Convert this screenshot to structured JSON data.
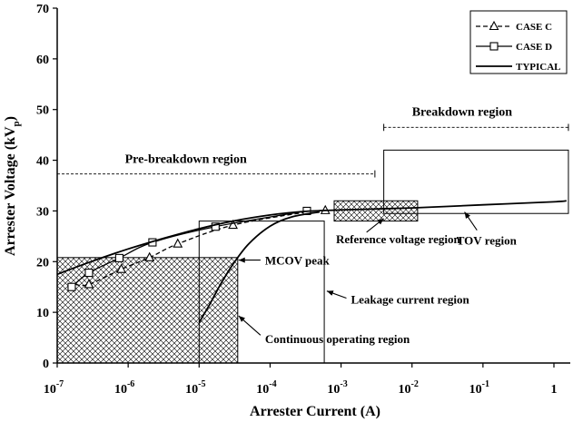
{
  "chart_data": {
    "type": "line",
    "x_scale": "log",
    "xlabel": "Arrester Current (A)",
    "ylabel": "Arrester Voltage (kV",
    "ylabel_sub": "p",
    "ylabel_close": ")",
    "xlim": [
      1e-07,
      1
    ],
    "ylim": [
      0,
      70
    ],
    "x_ticks": [
      {
        "value": 1e-07,
        "base": "10",
        "exp": "-7"
      },
      {
        "value": 1e-06,
        "base": "10",
        "exp": "-6"
      },
      {
        "value": 1e-05,
        "base": "10",
        "exp": "-5"
      },
      {
        "value": 0.0001,
        "base": "10",
        "exp": "-4"
      },
      {
        "value": 0.001,
        "base": "10",
        "exp": "-3"
      },
      {
        "value": 0.01,
        "base": "10",
        "exp": "-2"
      },
      {
        "value": 0.1,
        "base": "10",
        "exp": "-1"
      },
      {
        "value": 1,
        "base": "1",
        "exp": ""
      }
    ],
    "y_ticks": [
      0,
      10,
      20,
      30,
      40,
      50,
      60,
      70
    ],
    "grid": false,
    "legend_position": "top-right",
    "series": [
      {
        "name": "CASE C",
        "marker": "triangle",
        "dash": "dashed",
        "points": [
          [
            1.8e-07,
            15.5
          ],
          [
            2.8e-07,
            15.5
          ],
          [
            8e-07,
            18.5
          ],
          [
            2e-06,
            20.8
          ],
          [
            5e-06,
            23.5
          ],
          [
            3e-05,
            27.2
          ],
          [
            0.0003,
            29.7
          ],
          [
            0.0006,
            30.1
          ]
        ],
        "markers_at": [
          [
            2.8e-07,
            15.5
          ],
          [
            8e-07,
            18.5
          ],
          [
            2e-06,
            20.8
          ],
          [
            5e-06,
            23.5
          ],
          [
            3e-05,
            27.2
          ],
          [
            0.0006,
            30.1
          ]
        ]
      },
      {
        "name": "CASE D",
        "marker": "square",
        "dash": "solid",
        "points": [
          [
            1.6e-07,
            15
          ],
          [
            2.8e-07,
            17.8
          ],
          [
            7.5e-07,
            20.7
          ],
          [
            2.2e-06,
            23.8
          ],
          [
            1.7e-05,
            26.9
          ],
          [
            0.00033,
            30
          ]
        ],
        "markers_at": [
          [
            1.6e-07,
            15
          ],
          [
            2.8e-07,
            17.8
          ],
          [
            7.5e-07,
            20.7
          ],
          [
            2.2e-06,
            23.8
          ],
          [
            1.7e-05,
            26.9
          ],
          [
            0.00033,
            30
          ]
        ]
      },
      {
        "name": "TYPICAL",
        "marker": "none",
        "dash": "solid",
        "points": [
          [
            1e-07,
            17.5
          ],
          [
            3e-07,
            20
          ],
          [
            1e-06,
            22.5
          ],
          [
            3e-06,
            24.5
          ],
          [
            1e-05,
            26.5
          ],
          [
            3e-05,
            28
          ],
          [
            0.0001,
            29.2
          ],
          [
            0.0003,
            29.9
          ],
          [
            0.001,
            30.2
          ],
          [
            0.01,
            30.6
          ],
          [
            0.1,
            31.2
          ],
          [
            1,
            31.8
          ],
          [
            1.5,
            32
          ]
        ]
      },
      {
        "name": "",
        "marker": "none",
        "dash": "solid",
        "points": [
          [
            1e-05,
            8
          ],
          [
            1.4e-05,
            11.5
          ],
          [
            2e-05,
            15.5
          ],
          [
            3e-05,
            19.5
          ],
          [
            5e-05,
            23.5
          ],
          [
            0.0001,
            27
          ],
          [
            0.0002,
            28.8
          ],
          [
            0.0005,
            29.8
          ]
        ]
      }
    ],
    "regions": [
      {
        "name": "MCOV hatched box",
        "x": [
          1e-07,
          3.5e-05
        ],
        "y": [
          0,
          20.8
        ],
        "hatched": true
      },
      {
        "name": "Continuous operating box",
        "x": [
          1e-05,
          0.00058
        ],
        "y": [
          0,
          28
        ],
        "hatched": false
      },
      {
        "name": "Reference voltage box",
        "x": [
          0.0008,
          0.012
        ],
        "y": [
          28,
          32
        ],
        "hatched": true
      },
      {
        "name": "TOV box",
        "x": [
          0.004,
          1.6
        ],
        "y": [
          29.5,
          42
        ],
        "hatched": false
      }
    ],
    "ranges": [
      {
        "label": "Pre-breakdown region",
        "x": [
          1e-07,
          0.003
        ],
        "y": 37.3,
        "label_x": 9e-07,
        "label_y": 39.5
      },
      {
        "label": "Breakdown region",
        "x": [
          0.004,
          1.6
        ],
        "y": 46.5,
        "label_x": 0.01,
        "label_y": 48.8
      }
    ],
    "annotations": [
      {
        "text": "MCOV peak",
        "arrow_from": [
          8e-05,
          20.3
        ],
        "arrow_to": [
          3.6e-05,
          20.3
        ],
        "text_at": [
          8e-05,
          20.3
        ],
        "anchor": "start"
      },
      {
        "text": "Leakage current region",
        "arrow_from": [
          0.0013,
          12.8
        ],
        "arrow_to": [
          0.00063,
          14.2
        ],
        "text_at": [
          0.0013,
          12.6
        ],
        "anchor": "start"
      },
      {
        "text": "Continuous  operating region",
        "arrow_from": [
          8e-05,
          5.5
        ],
        "arrow_to": [
          3.6e-05,
          9.3
        ],
        "text_at": [
          8e-05,
          4.8
        ],
        "anchor": "start"
      },
      {
        "text": "Reference voltage region",
        "arrow_from": [
          0.0025,
          25.8
        ],
        "arrow_to": [
          0.004,
          28.5
        ],
        "text_at": [
          0.0008,
          24.5
        ],
        "anchor": "start"
      },
      {
        "text": "TOV  region",
        "arrow_from": [
          0.09,
          26.2
        ],
        "arrow_to": [
          0.055,
          29.8
        ],
        "text_at": [
          0.04,
          24.3
        ],
        "anchor": "start"
      }
    ]
  }
}
